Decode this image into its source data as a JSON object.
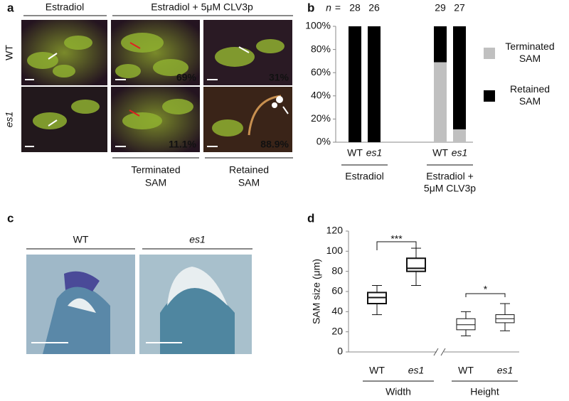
{
  "panel_a": {
    "label": "a",
    "columns": [
      "Estradiol",
      "Estradiol + 5μM CLV3p"
    ],
    "rows": [
      "WT",
      "es1"
    ],
    "percentages": [
      "69%",
      "31%",
      "11.1%",
      "88.9%"
    ],
    "outcomes": [
      [
        "Terminated",
        "SAM"
      ],
      [
        "Retained",
        "SAM"
      ]
    ]
  },
  "panel_c": {
    "label": "c",
    "columns": [
      "WT",
      "es1"
    ]
  },
  "chart_data": [
    {
      "type": "stacked-bar",
      "label": "b",
      "sample_size_label": "n",
      "sample_size_sign": "=",
      "sample_sizes": [
        28,
        26,
        29,
        27
      ],
      "categories": [
        "WT",
        "es1",
        "WT",
        "es1"
      ],
      "groups": [
        [
          "Estradiol"
        ],
        [
          "Estradiol +",
          "5μM CLV3p"
        ]
      ],
      "series": [
        {
          "name": "Terminated SAM",
          "color": "#c0c0c0",
          "values": [
            0,
            0,
            69,
            11.1
          ]
        },
        {
          "name": "Retained SAM",
          "color": "#000000",
          "values": [
            100,
            100,
            31,
            88.9
          ]
        }
      ],
      "ylim": [
        0,
        100
      ],
      "yticks": [
        {
          "value": 0,
          "label": "0%"
        },
        {
          "value": 20,
          "label": "20%"
        },
        {
          "value": 40,
          "label": "40%"
        },
        {
          "value": 60,
          "label": "60%"
        },
        {
          "value": 80,
          "label": "80%"
        },
        {
          "value": 100,
          "label": "100%"
        }
      ]
    },
    {
      "type": "box",
      "label": "d",
      "ylabel": "SAM size (μm)",
      "categories": [
        "WT",
        "es1",
        "WT",
        "es1"
      ],
      "groups": [
        "Width",
        "Height"
      ],
      "min": [
        37,
        66,
        16,
        21
      ],
      "q1": [
        48,
        80,
        22,
        29
      ],
      "median": [
        54,
        83,
        27,
        33
      ],
      "q3": [
        59,
        93,
        33,
        37
      ],
      "max": [
        66,
        103,
        40,
        48
      ],
      "ylim": [
        0,
        120
      ],
      "yticks": [
        0,
        20,
        40,
        60,
        80,
        100,
        120
      ],
      "annotations": [
        "***",
        "*"
      ]
    }
  ]
}
